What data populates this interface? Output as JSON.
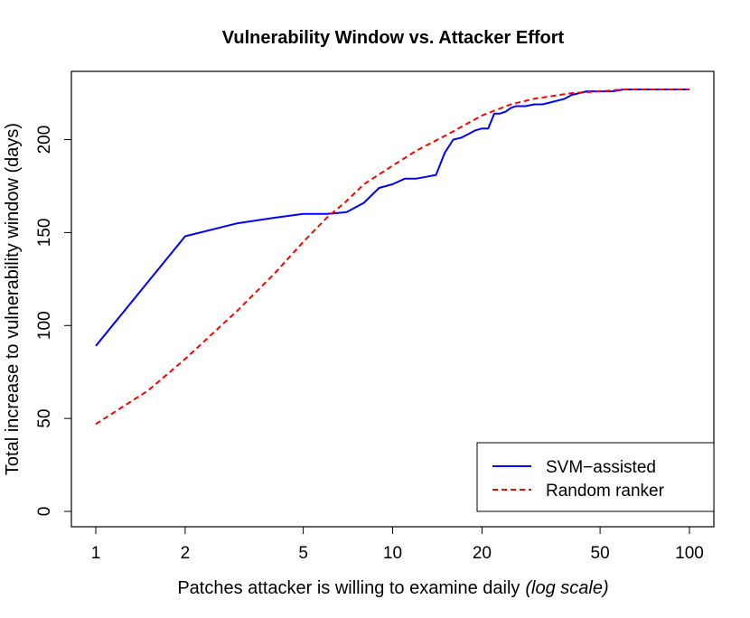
{
  "chart_data": {
    "type": "line",
    "title": "Vulnerability Window vs. Attacker Effort",
    "xlabel": "Patches attacker is willing to examine daily",
    "xlabel_suffix": "(log scale)",
    "ylabel": "Total increase to vulnerability window (days)",
    "x_scale": "log",
    "xlim": [
      1,
      100
    ],
    "ylim": [
      0,
      227
    ],
    "x_ticks": [
      1,
      2,
      5,
      10,
      20,
      50,
      100
    ],
    "x_tick_labels": [
      "1",
      "2",
      "5",
      "10",
      "20",
      "50",
      "100"
    ],
    "y_ticks": [
      0,
      50,
      100,
      150,
      200
    ],
    "y_tick_labels": [
      "0",
      "50",
      "100",
      "150",
      "200"
    ],
    "grid": false,
    "legend_position": "bottom-right",
    "series": [
      {
        "name": "SVM−assisted",
        "color": "#0000ff",
        "dash": "solid",
        "x": [
          1,
          2,
          3,
          4,
          5,
          6,
          7,
          8,
          9,
          10,
          11,
          12,
          13,
          14,
          15,
          16,
          17,
          18,
          19,
          20,
          21,
          22,
          23,
          24,
          25,
          26,
          28,
          30,
          32,
          34,
          36,
          38,
          40,
          45,
          50,
          55,
          60,
          70,
          80,
          100
        ],
        "y": [
          89,
          148,
          155,
          158,
          160,
          160,
          161,
          166,
          174,
          176,
          179,
          179,
          180,
          181,
          193,
          200,
          201,
          203,
          205,
          206,
          206,
          214,
          214,
          215,
          217,
          218,
          218,
          219,
          219,
          220,
          221,
          222,
          224,
          226,
          226,
          226,
          227,
          227,
          227,
          227
        ]
      },
      {
        "name": "Random ranker",
        "color": "#ff0000",
        "dash": "dashed",
        "x": [
          1,
          1.5,
          2,
          3,
          4,
          5,
          6,
          7,
          8,
          10,
          12,
          15,
          20,
          25,
          30,
          40,
          50,
          60,
          70,
          80,
          100
        ],
        "y": [
          47,
          65,
          82,
          108,
          128,
          145,
          158,
          167,
          176,
          186,
          194,
          202,
          213,
          219,
          222,
          225,
          226,
          227,
          227,
          227,
          227
        ]
      }
    ]
  }
}
